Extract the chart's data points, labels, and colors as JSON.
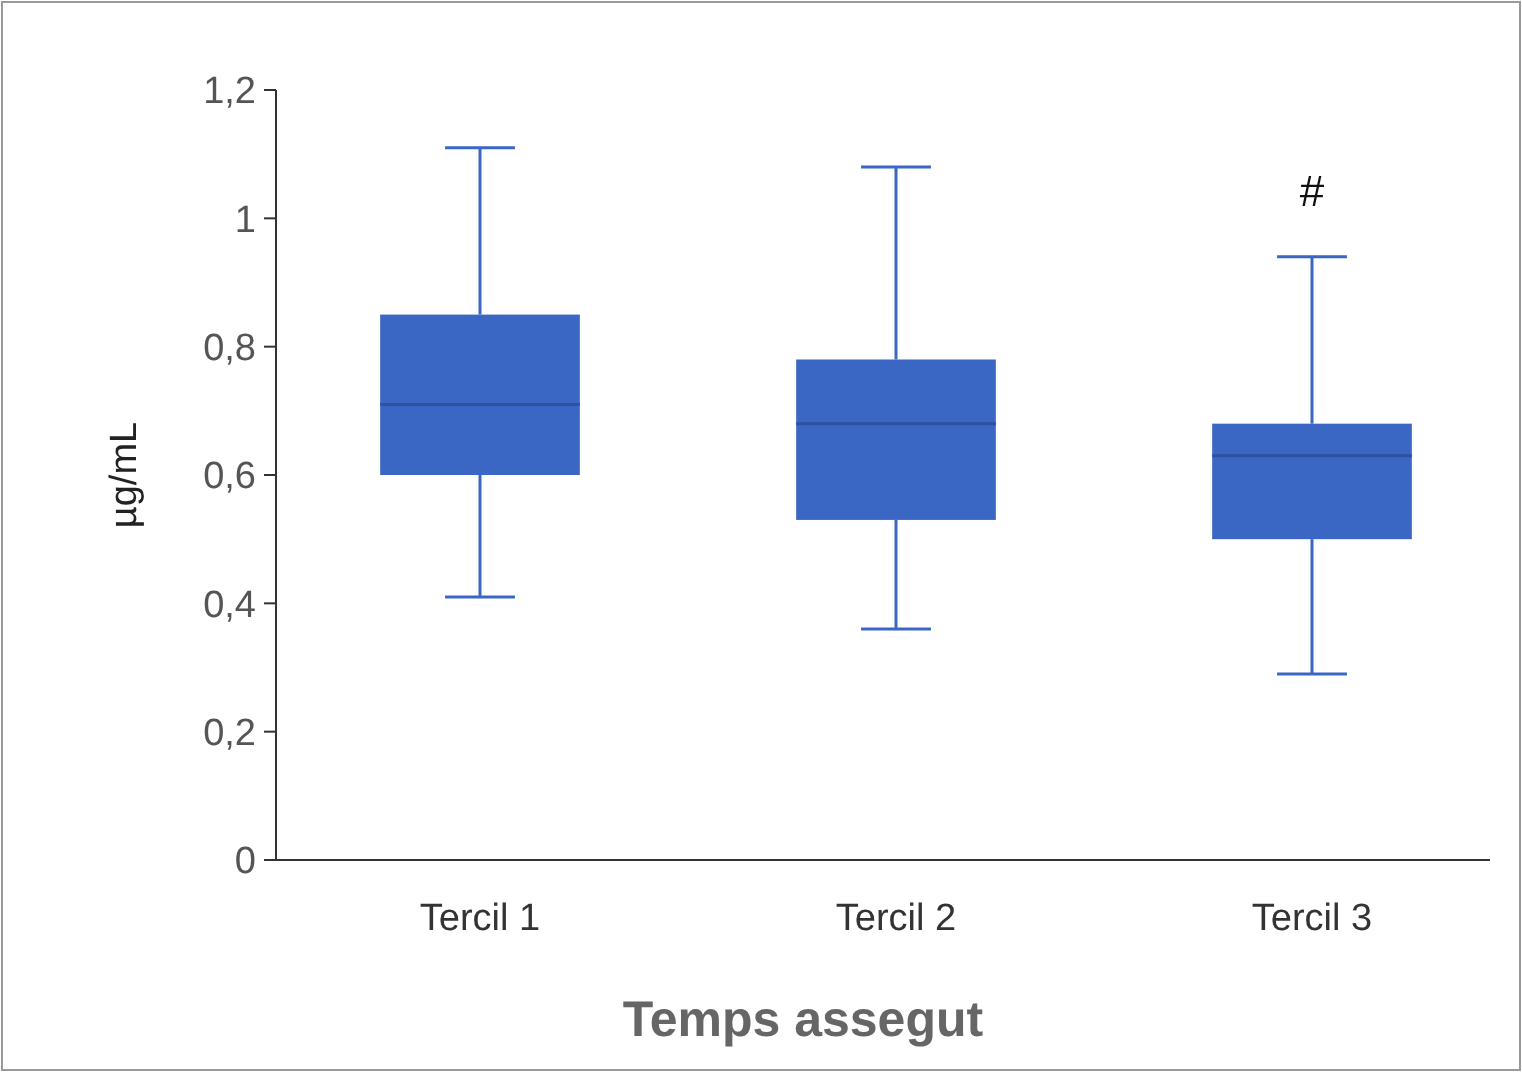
{
  "chart_data": {
    "type": "box",
    "xlabel": "Temps assegut",
    "ylabel": "µg/mL",
    "categories": [
      "Tercil 1",
      "Tercil 2",
      "Tercil 3"
    ],
    "color": "#3a66c4",
    "boxes": [
      {
        "low": 0.41,
        "q1": 0.6,
        "median": 0.71,
        "q3": 0.85,
        "high": 1.11
      },
      {
        "low": 0.36,
        "q1": 0.53,
        "median": 0.68,
        "q3": 0.78,
        "high": 1.08
      },
      {
        "low": 0.29,
        "q1": 0.5,
        "median": 0.63,
        "q3": 0.68,
        "high": 0.94
      }
    ],
    "ylim": [
      0,
      1.2
    ],
    "yticks": [
      {
        "value": 0,
        "label": "0"
      },
      {
        "value": 0.2,
        "label": "0,2"
      },
      {
        "value": 0.4,
        "label": "0,4"
      },
      {
        "value": 0.6,
        "label": "0,6"
      },
      {
        "value": 0.8,
        "label": "0,8"
      },
      {
        "value": 1,
        "label": "1"
      },
      {
        "value": 1.2,
        "label": "1,2"
      }
    ],
    "grid": false,
    "annotations": [
      "#"
    ]
  }
}
